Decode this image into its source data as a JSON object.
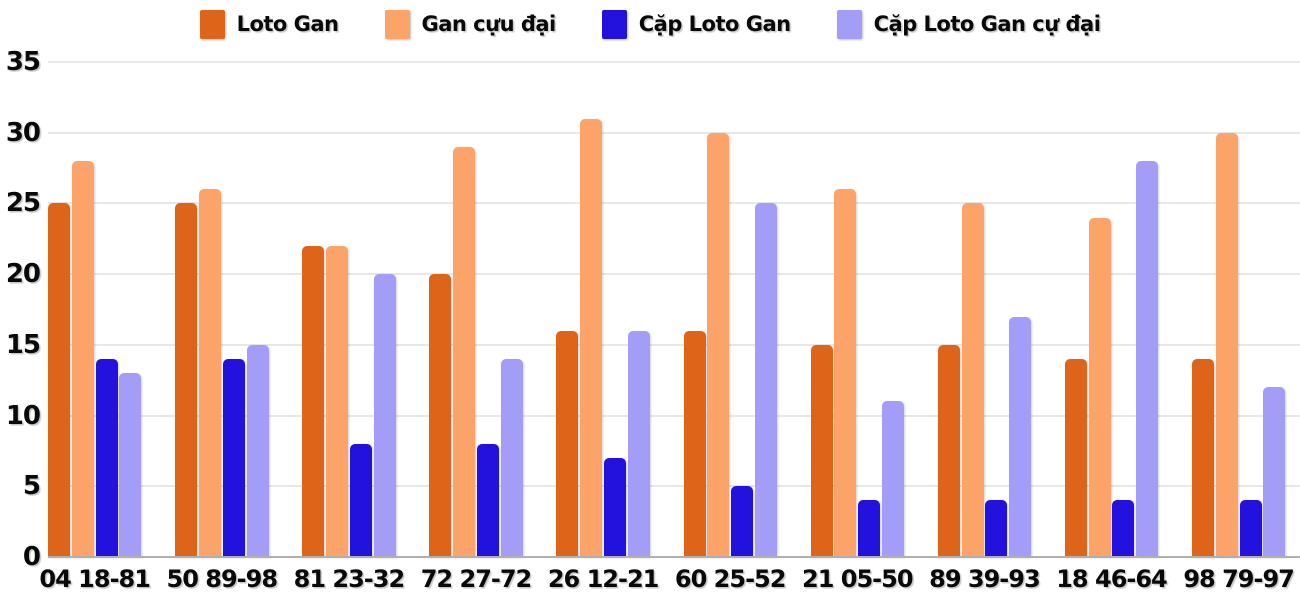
{
  "chart_data": {
    "type": "bar",
    "title": "",
    "xlabel": "",
    "ylabel": "",
    "categories": [
      "04 18-81",
      "50 89-98",
      "81 23-32",
      "72 27-72",
      "26 12-21",
      "60 25-52",
      "21 05-50",
      "89 39-93",
      "18 46-64",
      "98 79-97"
    ],
    "series": [
      {
        "id": "loto-gan",
        "name": "Loto Gan",
        "color": "#dd6418",
        "values": [
          25,
          25,
          22,
          20,
          16,
          16,
          15,
          15,
          14,
          14
        ]
      },
      {
        "id": "gan-cuu-dai",
        "name": "Gan cựu đại",
        "color": "#fba369",
        "values": [
          28,
          26,
          22,
          29,
          31,
          30,
          26,
          25,
          24,
          30
        ]
      },
      {
        "id": "cap-loto-gan",
        "name": "Cặp Loto Gan",
        "color": "#2312de",
        "values": [
          14,
          14,
          8,
          8,
          7,
          5,
          4,
          4,
          4,
          4
        ]
      },
      {
        "id": "cap-loto-gan-cu-dai",
        "name": "Cặp Loto Gan cự đại",
        "color": "#a49df8",
        "values": [
          13,
          15,
          20,
          14,
          16,
          25,
          11,
          17,
          28,
          12
        ]
      }
    ],
    "ylim": [
      0,
      35
    ],
    "yticks": [
      0,
      5,
      10,
      15,
      20,
      25,
      30,
      35
    ],
    "grid": true,
    "legend_position": "top",
    "colors": {
      "grid": "#e7e7e7",
      "axis_baseline": "#afafaf",
      "text": "#090909",
      "background": "#ffffff"
    }
  }
}
